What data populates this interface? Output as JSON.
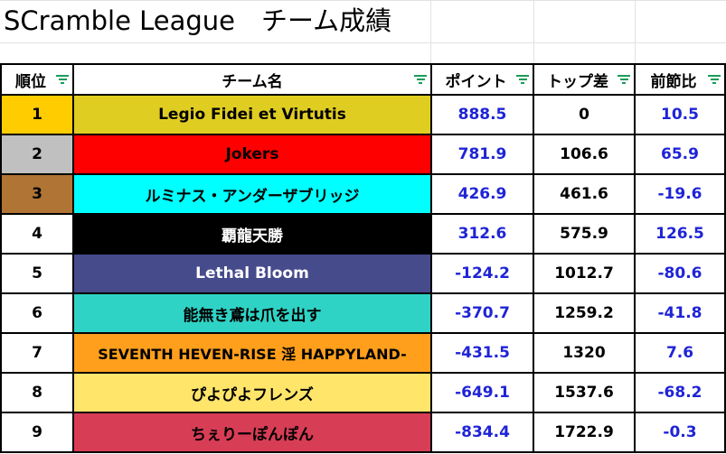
{
  "sheet": {
    "title": "SCramble League　チーム成績"
  },
  "headers": {
    "rank": "順位",
    "team": "チーム名",
    "points": "ポイント",
    "gap": "トップ差",
    "diff": "前節比"
  },
  "colors": {
    "points_text": "#1f24d6",
    "diff_text": "#1f24d6",
    "filter_icon": "#1a9c5a",
    "rank_gold": "#ffcc00",
    "rank_silver": "#c0c0c0",
    "rank_bronze": "#b07434"
  },
  "rows": [
    {
      "rank": "1",
      "team": "Legio Fidei et Virtutis",
      "points": "888.5",
      "gap": "0",
      "diff": "10.5",
      "team_bg": "#e0cd22",
      "team_fg": "#000000",
      "rank_bg": "#ffcc00"
    },
    {
      "rank": "2",
      "team": "Jokers",
      "points": "781.9",
      "gap": "106.6",
      "diff": "65.9",
      "team_bg": "#ff0000",
      "team_fg": "#000000",
      "rank_bg": "#c0c0c0"
    },
    {
      "rank": "3",
      "team": "ルミナス・アンダーザブリッジ",
      "points": "426.9",
      "gap": "461.6",
      "diff": "-19.6",
      "team_bg": "#00ffff",
      "team_fg": "#000000",
      "rank_bg": "#b07434"
    },
    {
      "rank": "4",
      "team": "覇龍天勝",
      "points": "312.6",
      "gap": "575.9",
      "diff": "126.5",
      "team_bg": "#000000",
      "team_fg": "#ffffff",
      "rank_bg": "#ffffff"
    },
    {
      "rank": "5",
      "team": "Lethal Bloom",
      "points": "-124.2",
      "gap": "1012.7",
      "diff": "-80.6",
      "team_bg": "#464b8c",
      "team_fg": "#ffffff",
      "rank_bg": "#ffffff"
    },
    {
      "rank": "6",
      "team": "能無き鳶は爪を出す",
      "points": "-370.7",
      "gap": "1259.2",
      "diff": "-41.8",
      "team_bg": "#2fd3c5",
      "team_fg": "#000000",
      "rank_bg": "#ffffff"
    },
    {
      "rank": "7",
      "team": "SEVENTH HEVEN-RISE 淫 HAPPYLAND-",
      "points": "-431.5",
      "gap": "1320",
      "diff": "7.6",
      "team_bg": "#ff9f1c",
      "team_fg": "#000000",
      "rank_bg": "#ffffff"
    },
    {
      "rank": "8",
      "team": "ぴよぴよフレンズ",
      "points": "-649.1",
      "gap": "1537.6",
      "diff": "-68.2",
      "team_bg": "#ffe56a",
      "team_fg": "#000000",
      "rank_bg": "#ffffff"
    },
    {
      "rank": "9",
      "team": "ちぇりーぽんぽん",
      "points": "-834.4",
      "gap": "1722.9",
      "diff": "-0.3",
      "team_bg": "#d83d56",
      "team_fg": "#000000",
      "rank_bg": "#ffffff"
    }
  ]
}
